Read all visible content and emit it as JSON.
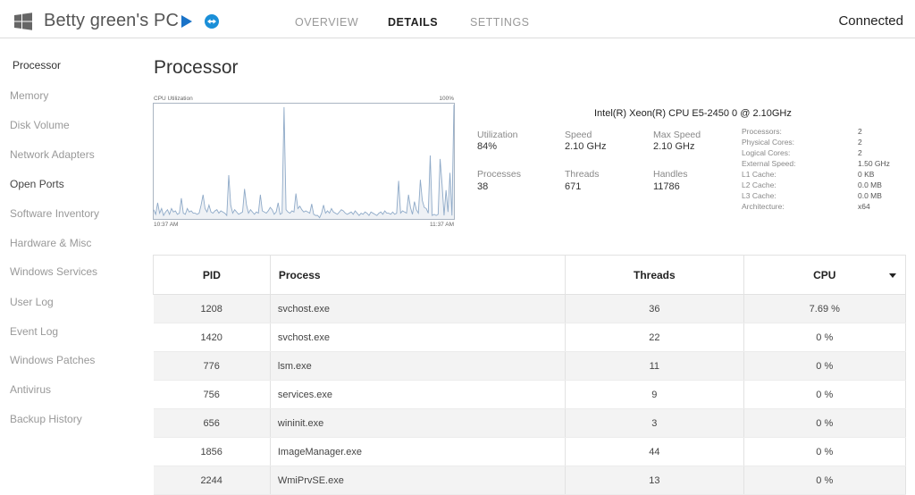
{
  "header": {
    "pc_name": "Betty green's PC",
    "tabs": [
      {
        "label": "OVERVIEW",
        "active": false
      },
      {
        "label": "DETAILS",
        "active": true
      },
      {
        "label": "SETTINGS",
        "active": false
      }
    ],
    "status": "Connected",
    "icons": [
      "windows-icon",
      "play-icon",
      "remote-control-icon"
    ],
    "accent_color": "#1a73c8"
  },
  "sidebar": {
    "items": [
      {
        "label": "Processor",
        "state": "active"
      },
      {
        "label": "Memory",
        "state": "normal"
      },
      {
        "label": "Disk Volume",
        "state": "normal"
      },
      {
        "label": "Network Adapters",
        "state": "normal"
      },
      {
        "label": "Open Ports",
        "state": "dark"
      },
      {
        "label": "Software Inventory",
        "state": "normal"
      },
      {
        "label": "Hardware & Misc",
        "state": "normal"
      },
      {
        "label": "Windows Services",
        "state": "normal"
      },
      {
        "label": "User Log",
        "state": "normal"
      },
      {
        "label": "Event Log",
        "state": "normal"
      },
      {
        "label": "Windows Patches",
        "state": "normal"
      },
      {
        "label": "Antivirus",
        "state": "normal"
      },
      {
        "label": "Backup History",
        "state": "normal"
      }
    ]
  },
  "main": {
    "title": "Processor",
    "cpu_name": "Intel(R) Xeon(R) CPU E5-2450 0 @ 2.10GHz",
    "stats": [
      {
        "label": "Utilization",
        "value": "84%"
      },
      {
        "label": "Speed",
        "value": "2.10 GHz"
      },
      {
        "label": "Max Speed",
        "value": "2.10 GHz"
      },
      {
        "label": "Processes",
        "value": "38"
      },
      {
        "label": "Threads",
        "value": "671"
      },
      {
        "label": "Handles",
        "value": "11786"
      }
    ],
    "specs": [
      {
        "label": "Processors:",
        "value": "2"
      },
      {
        "label": "Physical Cores:",
        "value": "2"
      },
      {
        "label": "Logical Cores:",
        "value": "2"
      },
      {
        "label": "External Speed:",
        "value": "1.50 GHz"
      },
      {
        "label": "L1 Cache:",
        "value": "0 KB"
      },
      {
        "label": "L2 Cache:",
        "value": "0.0 MB"
      },
      {
        "label": "L3 Cache:",
        "value": "0.0 MB"
      },
      {
        "label": "Architecture:",
        "value": "x64"
      }
    ]
  },
  "chart_data": {
    "type": "area",
    "title": "CPU Utilization",
    "x_start_label": "10:37 AM",
    "x_end_label": "11:37 AM",
    "ymax_label": "100%",
    "ylim": [
      0,
      100
    ],
    "line_color": "#8faac8",
    "fill_color": "#eef1f5",
    "values": [
      8,
      4,
      14,
      5,
      9,
      3,
      6,
      8,
      4,
      9,
      6,
      7,
      4,
      5,
      18,
      5,
      4,
      9,
      6,
      7,
      5,
      5,
      4,
      5,
      12,
      21,
      9,
      6,
      12,
      6,
      5,
      7,
      8,
      5,
      7,
      6,
      5,
      3,
      38,
      12,
      5,
      8,
      6,
      4,
      5,
      6,
      26,
      12,
      5,
      8,
      6,
      4,
      6,
      5,
      21,
      7,
      6,
      5,
      7,
      10,
      8,
      4,
      6,
      14,
      4,
      5,
      97,
      8,
      6,
      5,
      7,
      6,
      22,
      9,
      11,
      8,
      6,
      7,
      6,
      5,
      13,
      4,
      3,
      3,
      1,
      5,
      12,
      5,
      7,
      5,
      9,
      6,
      5,
      4,
      6,
      8,
      7,
      5,
      4,
      5,
      6,
      4,
      7,
      5,
      3,
      5,
      4,
      6,
      5,
      3,
      6,
      5,
      4,
      3,
      5,
      6,
      4,
      7,
      5,
      5,
      4,
      6,
      4,
      5,
      33,
      5,
      7,
      6,
      5,
      21,
      10,
      4,
      15,
      8,
      5,
      34,
      16,
      10,
      9,
      5,
      55,
      3,
      4,
      3,
      4,
      52,
      30,
      3,
      25,
      6,
      40,
      3,
      99
    ]
  },
  "table": {
    "columns": [
      {
        "label": "PID"
      },
      {
        "label": "Process"
      },
      {
        "label": "Threads"
      },
      {
        "label": "CPU",
        "sorted": "desc"
      }
    ],
    "rows": [
      {
        "pid": "1208",
        "process": "svchost.exe",
        "threads": "36",
        "cpu": "7.69 %"
      },
      {
        "pid": "1420",
        "process": "svchost.exe",
        "threads": "22",
        "cpu": "0 %"
      },
      {
        "pid": "776",
        "process": "lsm.exe",
        "threads": "11",
        "cpu": "0 %"
      },
      {
        "pid": "756",
        "process": "services.exe",
        "threads": "9",
        "cpu": "0 %"
      },
      {
        "pid": "656",
        "process": "wininit.exe",
        "threads": "3",
        "cpu": "0 %"
      },
      {
        "pid": "1856",
        "process": "ImageManager.exe",
        "threads": "44",
        "cpu": "0 %"
      },
      {
        "pid": "2244",
        "process": "WmiPrvSE.exe",
        "threads": "13",
        "cpu": "0 %"
      }
    ]
  }
}
